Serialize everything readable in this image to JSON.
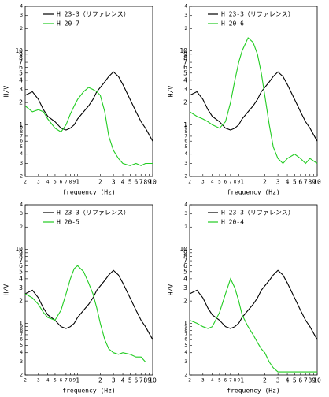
{
  "chart_data": [
    {
      "type": "line",
      "x_label": "frequency (Hz)",
      "y_label": "H/V",
      "log_x": true,
      "log_y": true,
      "xlim": [
        0.2,
        10
      ],
      "ylim": [
        0.2,
        40
      ],
      "xticks": [
        {
          "value": 0.2,
          "label": "2"
        },
        {
          "value": 0.3,
          "label": "3"
        },
        {
          "value": 0.4,
          "label": "4"
        },
        {
          "value": 0.5,
          "label": "5"
        },
        {
          "value": 0.6,
          "label": "6"
        },
        {
          "value": 0.7,
          "label": "7"
        },
        {
          "value": 0.8,
          "label": "8"
        },
        {
          "value": 0.9,
          "label": "9"
        },
        1,
        2,
        3,
        4,
        5,
        6,
        7,
        8,
        9,
        10
      ],
      "yticks": [
        {
          "value": 0.2,
          "label": "2"
        },
        {
          "value": 0.3,
          "label": "3"
        },
        {
          "value": 0.4,
          "label": "4"
        },
        {
          "value": 0.5,
          "label": "5"
        },
        {
          "value": 0.6,
          "label": "6"
        },
        {
          "value": 0.7,
          "label": "7"
        },
        {
          "value": 0.8,
          "label": "8"
        },
        {
          "value": 0.9,
          "label": "9"
        },
        1,
        2,
        3,
        4,
        5,
        6,
        7,
        8,
        9,
        10,
        {
          "value": 20,
          "label": "2"
        },
        {
          "value": 30,
          "label": "3"
        },
        {
          "value": 40,
          "label": "4"
        }
      ],
      "x": [
        0.2,
        0.25,
        0.3,
        0.35,
        0.4,
        0.5,
        0.6,
        0.7,
        0.8,
        0.9,
        1,
        1.2,
        1.4,
        1.6,
        1.8,
        2,
        2.3,
        2.6,
        3,
        3.5,
        4,
        5,
        6,
        7,
        8,
        10
      ],
      "series": [
        {
          "name": "H 23-3（リファレンス）",
          "color": "#000000",
          "values": [
            2.5,
            2.8,
            2.2,
            1.6,
            1.3,
            1.1,
            0.9,
            0.85,
            0.9,
            1.0,
            1.2,
            1.5,
            1.8,
            2.2,
            2.8,
            3.2,
            3.8,
            4.5,
            5.2,
            4.5,
            3.5,
            2.2,
            1.5,
            1.1,
            0.9,
            0.6
          ]
        },
        {
          "name": "H 20-7",
          "color": "#22cc22",
          "values": [
            1.8,
            1.5,
            1.6,
            1.5,
            1.2,
            0.9,
            0.8,
            1.0,
            1.4,
            1.8,
            2.2,
            2.8,
            3.2,
            3.0,
            2.8,
            2.5,
            1.5,
            0.7,
            0.45,
            0.35,
            0.3,
            0.28,
            0.3,
            0.28,
            0.3,
            0.3
          ]
        }
      ]
    },
    {
      "type": "line",
      "x_label": "frequency (Hz)",
      "y_label": "H/V",
      "log_x": true,
      "log_y": true,
      "xlim": [
        0.2,
        10
      ],
      "ylim": [
        0.2,
        40
      ],
      "xticks": [
        {
          "value": 0.2,
          "label": "2"
        },
        {
          "value": 0.3,
          "label": "3"
        },
        {
          "value": 0.4,
          "label": "4"
        },
        {
          "value": 0.5,
          "label": "5"
        },
        {
          "value": 0.6,
          "label": "6"
        },
        {
          "value": 0.7,
          "label": "7"
        },
        {
          "value": 0.8,
          "label": "8"
        },
        {
          "value": 0.9,
          "label": "9"
        },
        1,
        2,
        3,
        4,
        5,
        6,
        7,
        8,
        9,
        10
      ],
      "yticks": [
        {
          "value": 0.2,
          "label": "2"
        },
        {
          "value": 0.3,
          "label": "3"
        },
        {
          "value": 0.4,
          "label": "4"
        },
        {
          "value": 0.5,
          "label": "5"
        },
        {
          "value": 0.6,
          "label": "6"
        },
        {
          "value": 0.7,
          "label": "7"
        },
        {
          "value": 0.8,
          "label": "8"
        },
        {
          "value": 0.9,
          "label": "9"
        },
        1,
        2,
        3,
        4,
        5,
        6,
        7,
        8,
        9,
        10,
        {
          "value": 20,
          "label": "2"
        },
        {
          "value": 30,
          "label": "3"
        },
        {
          "value": 40,
          "label": "4"
        }
      ],
      "x": [
        0.2,
        0.25,
        0.3,
        0.35,
        0.4,
        0.5,
        0.6,
        0.7,
        0.8,
        0.9,
        1,
        1.2,
        1.4,
        1.6,
        1.8,
        2,
        2.3,
        2.6,
        3,
        3.5,
        4,
        5,
        6,
        7,
        8,
        10
      ],
      "series": [
        {
          "name": "H 23-3（リファレンス）",
          "color": "#000000",
          "values": [
            2.5,
            2.8,
            2.2,
            1.6,
            1.3,
            1.1,
            0.9,
            0.85,
            0.9,
            1.0,
            1.2,
            1.5,
            1.8,
            2.2,
            2.8,
            3.2,
            3.8,
            4.5,
            5.2,
            4.5,
            3.5,
            2.2,
            1.5,
            1.1,
            0.9,
            0.6
          ]
        },
        {
          "name": "H 20-6",
          "color": "#22cc22",
          "values": [
            1.5,
            1.3,
            1.2,
            1.1,
            1.0,
            0.9,
            1.1,
            2,
            4,
            7,
            10,
            15,
            13,
            9,
            5,
            2.5,
            1.0,
            0.5,
            0.35,
            0.3,
            0.35,
            0.4,
            0.35,
            0.3,
            0.35,
            0.3
          ]
        }
      ]
    },
    {
      "type": "line",
      "x_label": "frequency (Hz)",
      "y_label": "H/V",
      "log_x": true,
      "log_y": true,
      "xlim": [
        0.2,
        10
      ],
      "ylim": [
        0.2,
        40
      ],
      "xticks": [
        {
          "value": 0.2,
          "label": "2"
        },
        {
          "value": 0.3,
          "label": "3"
        },
        {
          "value": 0.4,
          "label": "4"
        },
        {
          "value": 0.5,
          "label": "5"
        },
        {
          "value": 0.6,
          "label": "6"
        },
        {
          "value": 0.7,
          "label": "7"
        },
        {
          "value": 0.8,
          "label": "8"
        },
        {
          "value": 0.9,
          "label": "9"
        },
        1,
        2,
        3,
        4,
        5,
        6,
        7,
        8,
        9,
        10
      ],
      "yticks": [
        {
          "value": 0.2,
          "label": "2"
        },
        {
          "value": 0.3,
          "label": "3"
        },
        {
          "value": 0.4,
          "label": "4"
        },
        {
          "value": 0.5,
          "label": "5"
        },
        {
          "value": 0.6,
          "label": "6"
        },
        {
          "value": 0.7,
          "label": "7"
        },
        {
          "value": 0.8,
          "label": "8"
        },
        {
          "value": 0.9,
          "label": "9"
        },
        1,
        2,
        3,
        4,
        5,
        6,
        7,
        8,
        9,
        10,
        {
          "value": 20,
          "label": "2"
        },
        {
          "value": 30,
          "label": "3"
        },
        {
          "value": 40,
          "label": "4"
        }
      ],
      "x": [
        0.2,
        0.25,
        0.3,
        0.35,
        0.4,
        0.5,
        0.6,
        0.7,
        0.8,
        0.9,
        1,
        1.2,
        1.4,
        1.6,
        1.8,
        2,
        2.3,
        2.6,
        3,
        3.5,
        4,
        5,
        6,
        7,
        8,
        10
      ],
      "series": [
        {
          "name": "H 23-3（リファレンス）",
          "color": "#000000",
          "values": [
            2.5,
            2.8,
            2.2,
            1.6,
            1.3,
            1.1,
            0.9,
            0.85,
            0.9,
            1.0,
            1.2,
            1.5,
            1.8,
            2.2,
            2.8,
            3.2,
            3.8,
            4.5,
            5.2,
            4.5,
            3.5,
            2.2,
            1.5,
            1.1,
            0.9,
            0.6
          ]
        },
        {
          "name": "H 20-5",
          "color": "#22cc22",
          "values": [
            2.5,
            2.2,
            1.8,
            1.4,
            1.2,
            1.1,
            1.5,
            2.5,
            4,
            5.5,
            6,
            5,
            3.5,
            2.5,
            1.6,
            1.0,
            0.6,
            0.45,
            0.4,
            0.38,
            0.4,
            0.38,
            0.35,
            0.35,
            0.3,
            0.3
          ]
        }
      ]
    },
    {
      "type": "line",
      "x_label": "frequency (Hz)",
      "y_label": "H/V",
      "log_x": true,
      "log_y": true,
      "xlim": [
        0.2,
        10
      ],
      "ylim": [
        0.2,
        40
      ],
      "xticks": [
        {
          "value": 0.2,
          "label": "2"
        },
        {
          "value": 0.3,
          "label": "3"
        },
        {
          "value": 0.4,
          "label": "4"
        },
        {
          "value": 0.5,
          "label": "5"
        },
        {
          "value": 0.6,
          "label": "6"
        },
        {
          "value": 0.7,
          "label": "7"
        },
        {
          "value": 0.8,
          "label": "8"
        },
        {
          "value": 0.9,
          "label": "9"
        },
        1,
        2,
        3,
        4,
        5,
        6,
        7,
        8,
        9,
        10
      ],
      "yticks": [
        {
          "value": 0.2,
          "label": "2"
        },
        {
          "value": 0.3,
          "label": "3"
        },
        {
          "value": 0.4,
          "label": "4"
        },
        {
          "value": 0.5,
          "label": "5"
        },
        {
          "value": 0.6,
          "label": "6"
        },
        {
          "value": 0.7,
          "label": "7"
        },
        {
          "value": 0.8,
          "label": "8"
        },
        {
          "value": 0.9,
          "label": "9"
        },
        1,
        2,
        3,
        4,
        5,
        6,
        7,
        8,
        9,
        10,
        {
          "value": 20,
          "label": "2"
        },
        {
          "value": 30,
          "label": "3"
        },
        {
          "value": 40,
          "label": "4"
        }
      ],
      "x": [
        0.2,
        0.25,
        0.3,
        0.35,
        0.4,
        0.5,
        0.6,
        0.7,
        0.8,
        0.9,
        1,
        1.2,
        1.4,
        1.6,
        1.8,
        2,
        2.3,
        2.6,
        3,
        3.5,
        4,
        5,
        6,
        7,
        8,
        10
      ],
      "series": [
        {
          "name": "H 23-3（リファレンス）",
          "color": "#000000",
          "values": [
            2.5,
            2.8,
            2.2,
            1.6,
            1.3,
            1.1,
            0.9,
            0.85,
            0.9,
            1.0,
            1.2,
            1.5,
            1.8,
            2.2,
            2.8,
            3.2,
            3.8,
            4.5,
            5.2,
            4.5,
            3.5,
            2.2,
            1.5,
            1.1,
            0.9,
            0.6
          ]
        },
        {
          "name": "H 20-4",
          "color": "#22cc22",
          "values": [
            1.1,
            1.0,
            0.9,
            0.85,
            0.9,
            1.4,
            2.5,
            4,
            3,
            2,
            1.3,
            0.9,
            0.7,
            0.55,
            0.45,
            0.4,
            0.3,
            0.25,
            0.22,
            0.22,
            0.22,
            0.22,
            0.22,
            0.22,
            0.22,
            0.22
          ]
        }
      ]
    }
  ]
}
